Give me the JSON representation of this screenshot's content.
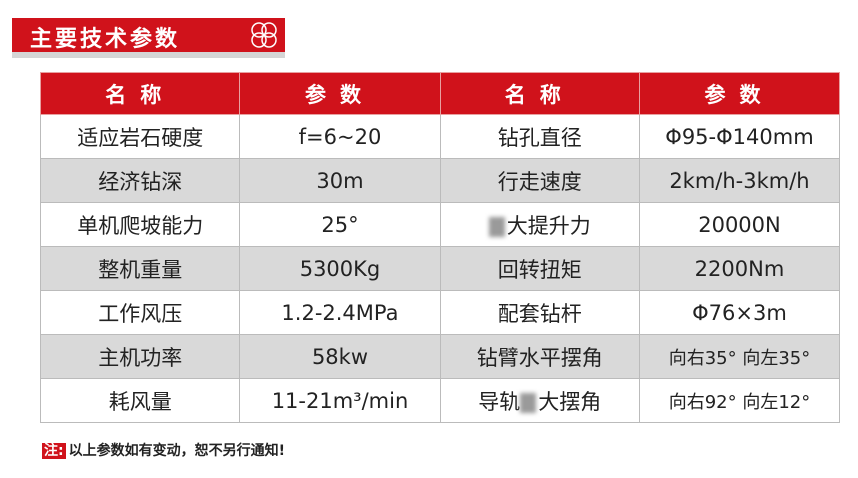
{
  "title": "主要技术参数",
  "headers": [
    "名称",
    "参数",
    "名称",
    "参数"
  ],
  "rows": [
    [
      "适应岩石硬度",
      "f=6~20",
      "钻孔直径",
      "Φ95-Φ140mm"
    ],
    [
      "经济钻深",
      "30m",
      "行走速度",
      "2km/h-3km/h"
    ],
    [
      "单机爬坡能力",
      "25°",
      "大提升力",
      "20000N"
    ],
    [
      "整机重量",
      "5300Kg",
      "回转扭矩",
      "2200Nm"
    ],
    [
      "工作风压",
      "1.2-2.4MPa",
      "配套钻杆",
      "Φ76×3m"
    ],
    [
      "主机功率",
      "58kw",
      "钻臂水平摆角",
      "向右35° 向左35°"
    ],
    [
      "耗风量",
      "11-21m³/min",
      "大摆角",
      "向右92° 向左12°"
    ]
  ],
  "row_prefix": {
    "2": "",
    "6": "导轨"
  },
  "note": {
    "tag": "注:",
    "text": "以上参数如有变动，恕不另行通知!"
  },
  "colors": {
    "accent": "#d0121b",
    "alt_row": "#d9d9d9"
  }
}
